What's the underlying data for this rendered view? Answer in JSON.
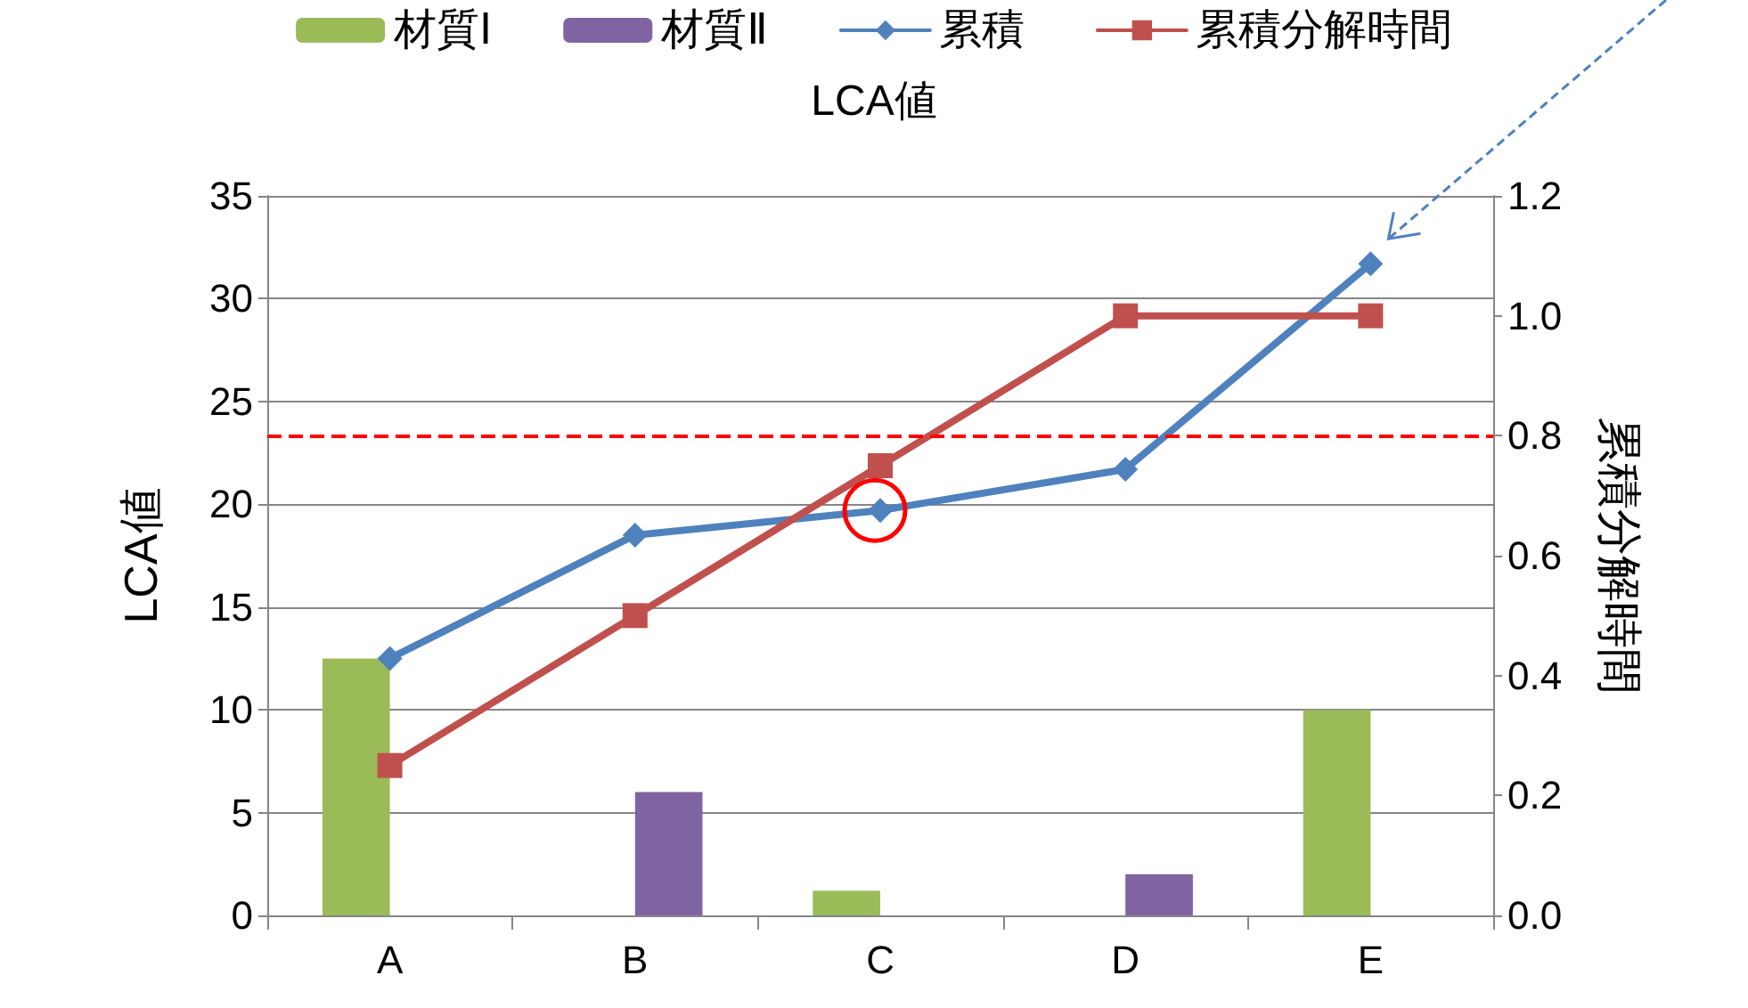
{
  "chart_data": {
    "type": "bar",
    "title": "LCA値",
    "ylabel": "LCA値",
    "y2label": "累積分解時間",
    "categories": [
      "A",
      "B",
      "C",
      "D",
      "E"
    ],
    "series": [
      {
        "name": "材質Ⅰ",
        "color": "#9bbb59",
        "values": [
          12.5,
          null,
          1.2,
          null,
          10
        ]
      },
      {
        "name": "材質Ⅱ",
        "color": "#8064a2",
        "values": [
          null,
          6,
          null,
          2,
          null
        ]
      },
      {
        "name": "累積",
        "type": "line",
        "color": "#4f81bd",
        "marker": "diamond",
        "values": [
          12.5,
          18.5,
          19.7,
          21.7,
          31.7
        ]
      },
      {
        "name": "累積分解時間",
        "type": "line",
        "axis": "y2",
        "color": "#c0504d",
        "marker": "square",
        "values": [
          0.25,
          0.5,
          0.75,
          1.0,
          1.0
        ]
      }
    ],
    "ylim": [
      0,
      35
    ],
    "yticks": [
      0,
      5,
      10,
      15,
      20,
      25,
      30,
      35
    ],
    "y2lim": [
      0,
      1.2
    ],
    "y2ticks": [
      {
        "value": 0,
        "label": "0.0"
      },
      {
        "value": 0.2,
        "label": "0.2"
      },
      {
        "value": 0.4,
        "label": "0.4"
      },
      {
        "value": 0.6,
        "label": "0.6"
      },
      {
        "value": 0.8,
        "label": "0.8"
      },
      {
        "value": 1.0,
        "label": "1.0"
      },
      {
        "value": 1.2,
        "label": "1.2"
      }
    ],
    "ref_lines": [
      {
        "axis": "y2",
        "value": 0.8,
        "color": "#ff0000",
        "line_style": "dashed"
      }
    ],
    "grid": "y",
    "legend": "top"
  }
}
